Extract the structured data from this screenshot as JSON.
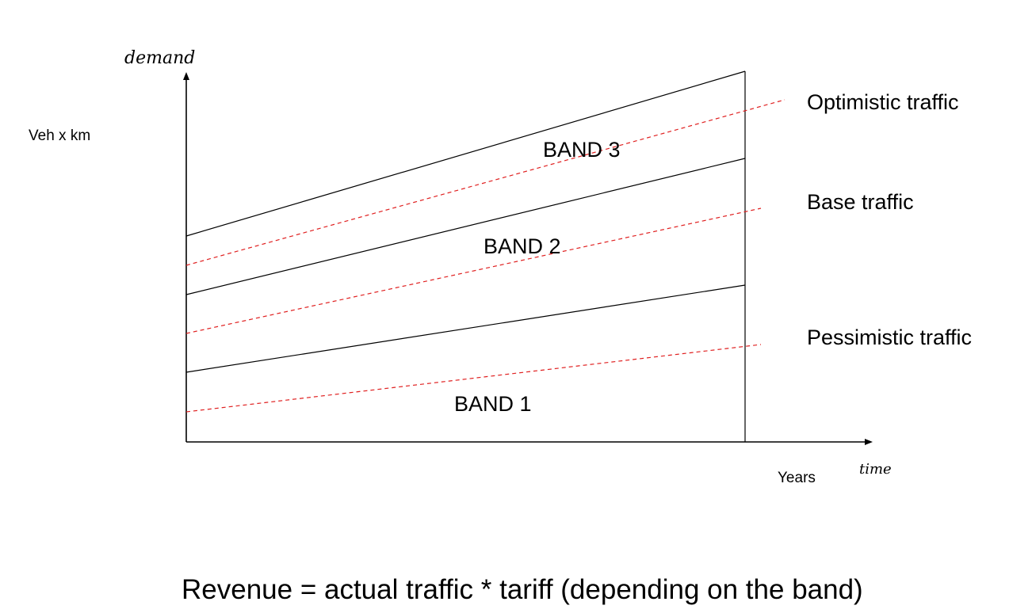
{
  "axes": {
    "y_label": "Veh x km",
    "y_handwritten": "demand",
    "x_label": "Years",
    "x_handwritten": "time"
  },
  "bands": [
    {
      "label": "BAND 1"
    },
    {
      "label": "BAND 2"
    },
    {
      "label": "BAND 3"
    }
  ],
  "traffic_scenarios": [
    {
      "label": "Optimistic traffic"
    },
    {
      "label": "Base traffic"
    },
    {
      "label": "Pessimistic traffic"
    }
  ],
  "caption": "Revenue = actual traffic * tariff (depending on the band)",
  "colors": {
    "band_lines": "#000000",
    "scenario_lines": "#e02020"
  }
}
